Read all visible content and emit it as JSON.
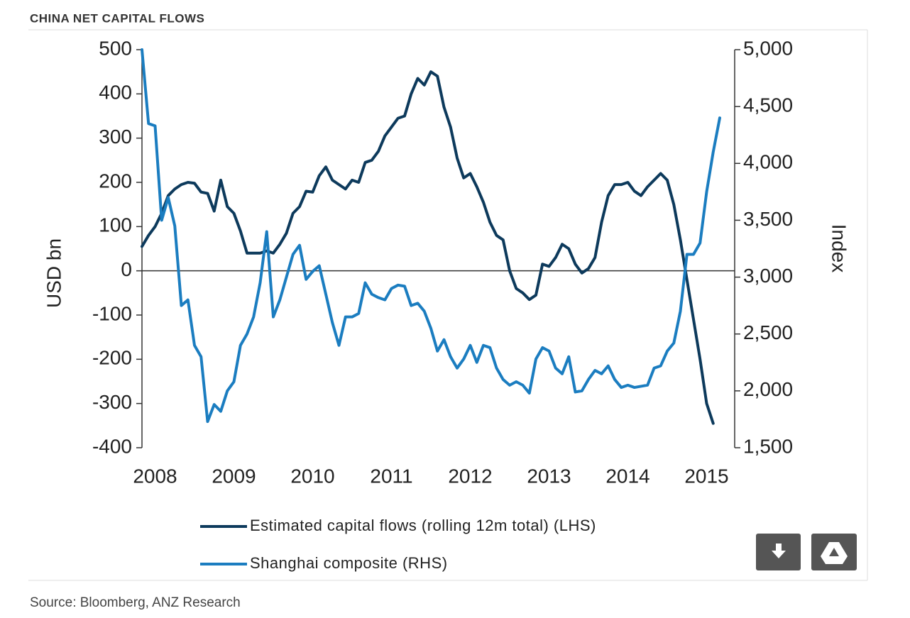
{
  "chart_data": {
    "type": "line",
    "title": "CHINA NET CAPITAL FLOWS",
    "source": "Source: Bloomberg, ANZ Research",
    "ylabel": "USD bn",
    "y2label": "Index",
    "categories": [
      null,
      null,
      "2008",
      null,
      null,
      null,
      null,
      null,
      null,
      null,
      null,
      null,
      null,
      null,
      "2009",
      null,
      null,
      null,
      null,
      null,
      null,
      null,
      null,
      null,
      null,
      null,
      "2010",
      null,
      null,
      null,
      null,
      null,
      null,
      null,
      null,
      null,
      null,
      null,
      "2011",
      null,
      null,
      null,
      null,
      null,
      null,
      null,
      null,
      null,
      null,
      null,
      "2012",
      null,
      null,
      null,
      null,
      null,
      null,
      null,
      null,
      null,
      null,
      null,
      "2013",
      null,
      null,
      null,
      null,
      null,
      null,
      null,
      null,
      null,
      null,
      null,
      "2014",
      null,
      null,
      null,
      null,
      null,
      null,
      null,
      null,
      null,
      null,
      null,
      "2015",
      null,
      null
    ],
    "ylim": [
      -400,
      500
    ],
    "yticks": [
      -400,
      -300,
      -200,
      -100,
      0,
      100,
      200,
      300,
      400,
      500
    ],
    "y2lim": [
      1500,
      5000
    ],
    "y2ticks": [
      {
        "value": 1500,
        "label": "1,500"
      },
      {
        "value": 2000,
        "label": "2,000"
      },
      {
        "value": 2500,
        "label": "2,500"
      },
      {
        "value": 3000,
        "label": "3,000"
      },
      {
        "value": 3500,
        "label": "3,500"
      },
      {
        "value": 4000,
        "label": "4,000"
      },
      {
        "value": 4500,
        "label": "4,500"
      },
      {
        "value": 5000,
        "label": "5,000"
      }
    ],
    "series": [
      {
        "name": "Estimated capital flows (rolling 12m total) (LHS)",
        "color": "#0d3a5c",
        "values": [
          55,
          80,
          100,
          130,
          170,
          185,
          195,
          200,
          198,
          178,
          175,
          135,
          205,
          145,
          130,
          90,
          40,
          40,
          40,
          45,
          40,
          60,
          85,
          130,
          145,
          180,
          178,
          215,
          235,
          205,
          195,
          185,
          205,
          200,
          245,
          250,
          270,
          305,
          325,
          345,
          350,
          400,
          435,
          420,
          450,
          440,
          370,
          325,
          255,
          210,
          220,
          190,
          155,
          110,
          80,
          70,
          0,
          -40,
          -50,
          -65,
          -55,
          15,
          10,
          30,
          60,
          50,
          15,
          -5,
          5,
          30,
          110,
          170,
          195,
          195,
          200,
          180,
          170,
          190,
          205,
          220,
          205,
          150,
          70,
          -20,
          -110,
          -200,
          -300,
          -345,
          null
        ]
      },
      {
        "name": "Shanghai composite (RHS)",
        "color": "#1b7dc0",
        "axis": "y2",
        "values": [
          5000,
          4350,
          4330,
          3500,
          3700,
          3450,
          2750,
          2800,
          2400,
          2300,
          1730,
          1880,
          1820,
          2000,
          2080,
          2400,
          2500,
          2650,
          2950,
          3400,
          2650,
          2800,
          3000,
          3200,
          3280,
          2980,
          3050,
          3100,
          2850,
          2600,
          2400,
          2650,
          2650,
          2680,
          2950,
          2850,
          2820,
          2800,
          2900,
          2930,
          2920,
          2750,
          2770,
          2700,
          2550,
          2350,
          2450,
          2300,
          2200,
          2280,
          2400,
          2250,
          2400,
          2380,
          2200,
          2100,
          2050,
          2080,
          2050,
          1980,
          2280,
          2380,
          2350,
          2200,
          2150,
          2300,
          1990,
          2000,
          2100,
          2180,
          2150,
          2220,
          2100,
          2030,
          2050,
          2030,
          2040,
          2050,
          2200,
          2220,
          2350,
          2420,
          2700,
          3200,
          3200,
          3300,
          3750,
          4100,
          4400
        ]
      }
    ]
  }
}
